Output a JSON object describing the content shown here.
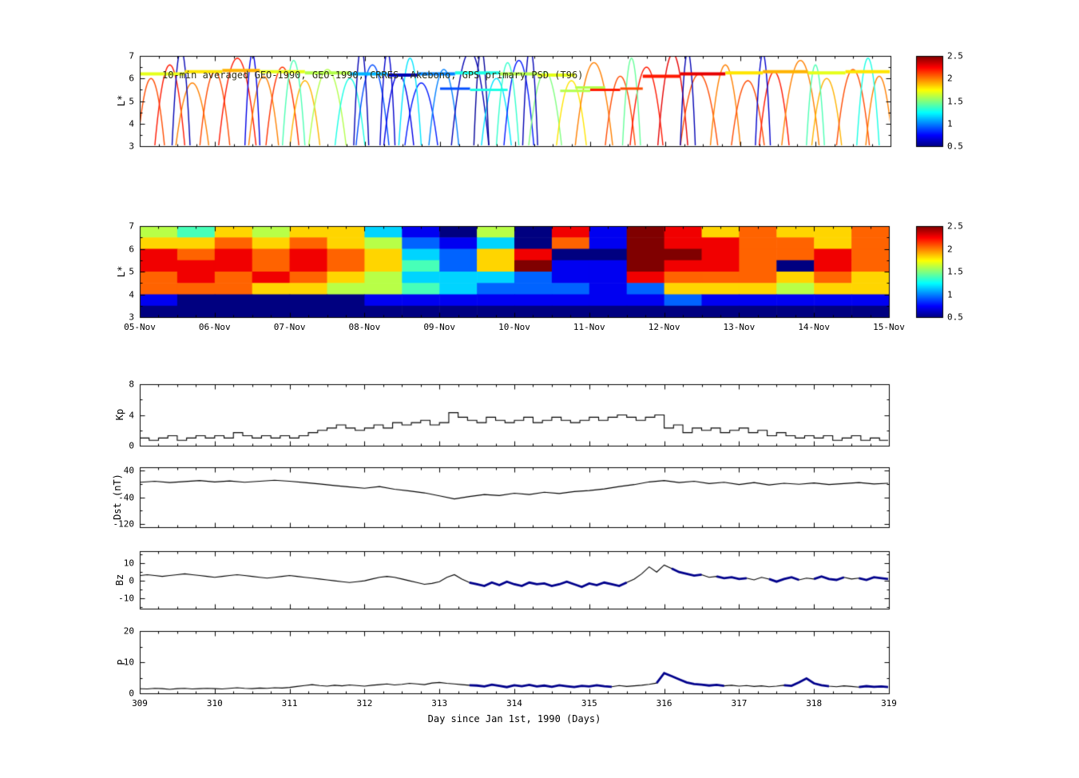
{
  "figure": {
    "background": "#ffffff",
    "line_color": "#000000",
    "bold_color": "#00008b"
  },
  "colorbar": {
    "vmin": 0.5,
    "vmax": 2.5,
    "tick_labels": [
      "2.5",
      "2",
      "1.5",
      "1",
      "0.5"
    ],
    "tick_values": [
      2.5,
      2,
      1.5,
      1,
      0.5
    ]
  },
  "chart_data": [
    {
      "id": "psd-orbits",
      "type": "scatter-arcs",
      "title": "10-min averaged GEO-1990, GEO-1990, CRRES, Akebono, GPS  primary PSD (T96)",
      "ylabel": "L*",
      "xlim": [
        309,
        319
      ],
      "ylim": [
        3,
        7
      ],
      "ytick_values": [
        7,
        6,
        5,
        4,
        3
      ],
      "ytick_labels": [
        "7",
        "6",
        "5",
        "4",
        "3"
      ],
      "ytick_minor": [
        3.5,
        4.5,
        5.5,
        6.5
      ],
      "vmin": 0.5,
      "vmax": 2.5,
      "geo_band": [
        [
          309.0,
          309.6,
          6.2,
          1.7
        ],
        [
          309.6,
          310.1,
          6.3,
          1.8
        ],
        [
          310.1,
          310.6,
          6.35,
          1.9
        ],
        [
          310.6,
          311.2,
          6.3,
          1.7
        ],
        [
          311.2,
          311.8,
          6.25,
          1.6
        ],
        [
          311.8,
          312.3,
          6.2,
          1.1
        ],
        [
          312.3,
          312.7,
          6.15,
          0.6
        ],
        [
          312.7,
          313.2,
          6.2,
          1.0
        ],
        [
          313.2,
          313.8,
          6.25,
          1.3
        ],
        [
          313.8,
          314.3,
          6.2,
          1.6
        ],
        [
          314.3,
          314.8,
          6.15,
          1.7
        ],
        [
          315.7,
          316.2,
          6.1,
          2.2
        ],
        [
          316.2,
          316.8,
          6.2,
          2.3
        ],
        [
          316.8,
          317.3,
          6.25,
          1.8
        ],
        [
          317.3,
          317.9,
          6.3,
          1.9
        ],
        [
          317.9,
          318.4,
          6.25,
          1.7
        ],
        [
          318.4,
          319.0,
          6.3,
          1.8
        ]
      ],
      "mid_band": [
        [
          313.0,
          313.4,
          5.55,
          0.9
        ],
        [
          313.4,
          313.9,
          5.5,
          1.3
        ],
        [
          314.6,
          315.0,
          5.45,
          1.6
        ],
        [
          315.0,
          315.4,
          5.5,
          2.2
        ],
        [
          315.4,
          315.7,
          5.55,
          2.1
        ],
        [
          314.8,
          315.2,
          5.6,
          1.6
        ]
      ],
      "arcs": [
        [
          309.15,
          0.18,
          6.0,
          2.1
        ],
        [
          309.4,
          0.2,
          6.6,
          2.2
        ],
        [
          309.7,
          0.22,
          5.8,
          2.0
        ],
        [
          310.0,
          0.2,
          6.3,
          2.1
        ],
        [
          310.3,
          0.25,
          6.9,
          2.2
        ],
        [
          310.65,
          0.2,
          6.1,
          2.0
        ],
        [
          310.9,
          0.22,
          6.5,
          2.15
        ],
        [
          311.2,
          0.2,
          5.9,
          1.9
        ],
        [
          311.5,
          0.25,
          6.4,
          1.6
        ],
        [
          311.8,
          0.2,
          6.0,
          1.3
        ],
        [
          312.1,
          0.22,
          6.6,
          0.9
        ],
        [
          312.45,
          0.2,
          6.2,
          0.7
        ],
        [
          312.75,
          0.22,
          5.8,
          0.8
        ],
        [
          313.05,
          0.2,
          6.4,
          1.0
        ],
        [
          313.4,
          0.25,
          7.2,
          0.6
        ],
        [
          313.75,
          0.2,
          6.0,
          1.2
        ],
        [
          314.05,
          0.2,
          6.8,
          0.8
        ],
        [
          314.4,
          0.22,
          6.3,
          1.5
        ],
        [
          314.75,
          0.2,
          5.9,
          1.8
        ],
        [
          315.05,
          0.25,
          6.7,
          2.0
        ],
        [
          315.4,
          0.2,
          6.1,
          2.1
        ],
        [
          315.75,
          0.22,
          6.5,
          2.2
        ],
        [
          316.1,
          0.2,
          7.1,
          2.3
        ],
        [
          316.45,
          0.25,
          6.2,
          2.1
        ],
        [
          316.8,
          0.2,
          6.6,
          2.0
        ],
        [
          317.1,
          0.22,
          5.9,
          2.1
        ],
        [
          317.45,
          0.2,
          6.3,
          2.2
        ],
        [
          317.8,
          0.25,
          6.8,
          2.0
        ],
        [
          318.15,
          0.2,
          6.0,
          1.9
        ],
        [
          318.5,
          0.22,
          6.4,
          2.1
        ],
        [
          318.85,
          0.18,
          6.1,
          2.0
        ],
        [
          309.55,
          0.12,
          7.3,
          0.6
        ],
        [
          310.5,
          0.1,
          7.1,
          0.7
        ],
        [
          311.95,
          0.1,
          7.4,
          0.6
        ],
        [
          312.3,
          0.1,
          7.2,
          0.65
        ],
        [
          313.55,
          0.1,
          7.3,
          0.55
        ],
        [
          314.2,
          0.1,
          7.4,
          0.6
        ],
        [
          316.3,
          0.1,
          7.2,
          0.6
        ],
        [
          317.3,
          0.1,
          7.1,
          0.65
        ],
        [
          311.05,
          0.15,
          6.8,
          1.4
        ],
        [
          312.6,
          0.15,
          6.9,
          1.2
        ],
        [
          313.9,
          0.15,
          6.7,
          1.35
        ],
        [
          315.55,
          0.12,
          6.9,
          1.45
        ],
        [
          318.0,
          0.12,
          6.6,
          1.4
        ],
        [
          318.7,
          0.15,
          6.9,
          1.3
        ]
      ]
    },
    {
      "id": "psd-map",
      "type": "heatmap",
      "ylabel": "L*",
      "xlim": [
        309,
        319
      ],
      "ylim": [
        3,
        7
      ],
      "ytick_values": [
        7,
        6,
        5,
        4,
        3
      ],
      "ytick_labels": [
        "7",
        "6",
        "5",
        "4",
        "3"
      ],
      "ytick_minor": [
        3.5,
        4.5,
        5.5,
        6.5
      ],
      "xtick_values": [
        309,
        310,
        311,
        312,
        313,
        314,
        315,
        316,
        317,
        318,
        319
      ],
      "xtick_labels": [
        "05-Nov",
        "06-Nov",
        "07-Nov",
        "08-Nov",
        "09-Nov",
        "10-Nov",
        "11-Nov",
        "12-Nov",
        "13-Nov",
        "14-Nov",
        "15-Nov"
      ],
      "vmin": 0.5,
      "vmax": 2.5,
      "grid_digits": [
        [
          5,
          4,
          6,
          5,
          6,
          6,
          3,
          1,
          0,
          5,
          0,
          8,
          1,
          9,
          8,
          6,
          7,
          6,
          6,
          7
        ],
        [
          6,
          6,
          7,
          6,
          7,
          6,
          5,
          2,
          1,
          3,
          0,
          7,
          1,
          9,
          8,
          8,
          7,
          7,
          6,
          7
        ],
        [
          8,
          7,
          8,
          7,
          8,
          7,
          6,
          3,
          2,
          6,
          8,
          0,
          0,
          9,
          9,
          8,
          7,
          7,
          8,
          7
        ],
        [
          8,
          8,
          8,
          7,
          8,
          7,
          6,
          4,
          2,
          6,
          9,
          1,
          1,
          9,
          8,
          8,
          7,
          0,
          8,
          7
        ],
        [
          7,
          8,
          7,
          8,
          7,
          6,
          5,
          3,
          3,
          3,
          2,
          1,
          1,
          8,
          7,
          7,
          7,
          6,
          7,
          6
        ],
        [
          7,
          7,
          7,
          6,
          6,
          5,
          5,
          4,
          3,
          2,
          2,
          2,
          1,
          2,
          6,
          6,
          6,
          5,
          6,
          6
        ],
        [
          1,
          0,
          0,
          0,
          0,
          0,
          1,
          1,
          1,
          1,
          1,
          1,
          1,
          1,
          2,
          1,
          1,
          1,
          1,
          1
        ],
        [
          0,
          0,
          0,
          0,
          0,
          0,
          0,
          0,
          0,
          0,
          0,
          0,
          0,
          0,
          0,
          0,
          0,
          0,
          0,
          0
        ]
      ]
    },
    {
      "id": "kp",
      "type": "step",
      "ylabel": "Kp",
      "xlim": [
        309,
        319
      ],
      "ylim": [
        0,
        8
      ],
      "ytick_values": [
        8,
        4,
        0
      ],
      "ytick_labels": [
        "8",
        "4",
        "0"
      ],
      "ytick_minor": [
        2,
        6
      ],
      "x0": 309,
      "dx": 0.125,
      "values": [
        1,
        0.7,
        1,
        1.3,
        0.7,
        1,
        1.3,
        1,
        1.3,
        1,
        1.7,
        1.3,
        1,
        1.3,
        1,
        1.3,
        1,
        1.3,
        1.7,
        2,
        2.3,
        2.7,
        2.3,
        2,
        2.3,
        2.7,
        2.3,
        3,
        2.7,
        3,
        3.3,
        2.7,
        3,
        4.3,
        3.7,
        3.3,
        3,
        3.7,
        3.3,
        3,
        3.3,
        3.7,
        3,
        3.3,
        3.7,
        3.3,
        3,
        3.3,
        3.7,
        3.3,
        3.7,
        4,
        3.7,
        3.3,
        3.7,
        4,
        2.3,
        2.7,
        1.7,
        2.3,
        2,
        2.3,
        1.7,
        2,
        2.3,
        1.7,
        2,
        1.3,
        1.7,
        1.3,
        1,
        1.3,
        1,
        1.3,
        0.7,
        1,
        1.3,
        0.7,
        1,
        0.7
      ]
    },
    {
      "id": "dst",
      "type": "line",
      "ylabel": "Dst (nT)",
      "xlim": [
        309,
        319
      ],
      "ylim": [
        -130,
        50
      ],
      "ytick_values": [
        40,
        -40,
        -120
      ],
      "ytick_labels": [
        "40",
        "-40",
        "-120"
      ],
      "ytick_minor": [
        0,
        -80
      ],
      "x0": 309,
      "dx": 0.2,
      "values": [
        5,
        8,
        4,
        7,
        10,
        6,
        9,
        5,
        8,
        11,
        8,
        4,
        0,
        -5,
        -9,
        -13,
        -8,
        -16,
        -21,
        -27,
        -36,
        -45,
        -38,
        -32,
        -35,
        -28,
        -32,
        -25,
        -29,
        -23,
        -20,
        -15,
        -8,
        -2,
        6,
        10,
        4,
        8,
        1,
        5,
        -2,
        4,
        -3,
        2,
        -1,
        3,
        -2,
        1,
        4,
        0,
        2
      ]
    },
    {
      "id": "bz",
      "type": "line",
      "ylabel": "Bz",
      "xlim": [
        309,
        319
      ],
      "ylim": [
        -16,
        17
      ],
      "ytick_values": [
        10,
        0,
        -10
      ],
      "ytick_labels": [
        "10",
        "0",
        "-10"
      ],
      "ytick_minor": [
        15,
        5,
        -5,
        -15
      ],
      "x0": 309,
      "dx": 0.1,
      "bold_color": "#00008b",
      "bold_ranges": [
        [
          313.4,
          315.55
        ],
        [
          316.05,
          316.55
        ],
        [
          316.7,
          317.1
        ],
        [
          317.35,
          317.8
        ],
        [
          317.95,
          318.45
        ],
        [
          318.6,
          319.0
        ]
      ],
      "values": [
        3,
        3.5,
        3,
        2.5,
        3,
        3.5,
        4,
        3.5,
        3,
        2.5,
        2,
        2.5,
        3,
        3.5,
        3,
        2.5,
        2,
        1.5,
        2,
        2.5,
        3,
        2.5,
        2,
        1.5,
        1,
        0.5,
        0,
        -0.5,
        -1,
        -0.5,
        0,
        1,
        2,
        2.5,
        2,
        1,
        0,
        -1,
        -2,
        -1.5,
        -0.5,
        2,
        3.5,
        1,
        -1,
        -2,
        -3,
        -1,
        -2.5,
        -0.5,
        -2,
        -3,
        -1,
        -2,
        -1.5,
        -3,
        -2,
        -0.5,
        -2,
        -3.5,
        -1.5,
        -2.5,
        -1,
        -2,
        -3,
        -1,
        1,
        4,
        8,
        5,
        9,
        7,
        5,
        4,
        3,
        3.5,
        2,
        2.5,
        1.5,
        2,
        1,
        1.5,
        0.5,
        2,
        1,
        -0.5,
        1,
        2,
        0.5,
        1.5,
        1,
        2.5,
        1,
        0.5,
        2,
        1,
        1.5,
        0.5,
        2,
        1.5,
        1
      ]
    },
    {
      "id": "p",
      "type": "line",
      "ylabel": "P",
      "xlabel": "Day since Jan 1st, 1990 (Days)",
      "xlim": [
        309,
        319
      ],
      "ylim": [
        0,
        20
      ],
      "ytick_values": [
        20,
        10,
        0
      ],
      "ytick_labels": [
        "20",
        "10",
        "0"
      ],
      "ytick_minor": [
        5,
        15
      ],
      "xtick_values": [
        309,
        310,
        311,
        312,
        313,
        314,
        315,
        316,
        317,
        318,
        319
      ],
      "xtick_labels": [
        "309",
        "310",
        "311",
        "312",
        "313",
        "314",
        "315",
        "316",
        "317",
        "318",
        "319"
      ],
      "x0": 309,
      "dx": 0.1,
      "bold_color": "#00008b",
      "bold_ranges": [
        [
          313.4,
          315.3
        ],
        [
          315.9,
          316.85
        ],
        [
          317.55,
          318.25
        ],
        [
          318.55,
          319.0
        ]
      ],
      "values": [
        1.5,
        1.4,
        1.6,
        1.5,
        1.3,
        1.5,
        1.6,
        1.4,
        1.5,
        1.6,
        1.5,
        1.4,
        1.6,
        1.8,
        1.6,
        1.5,
        1.7,
        1.6,
        1.8,
        1.7,
        1.9,
        2.2,
        2.5,
        2.8,
        2.5,
        2.3,
        2.6,
        2.4,
        2.7,
        2.5,
        2.3,
        2.6,
        2.8,
        3.0,
        2.7,
        2.9,
        3.2,
        3.0,
        2.8,
        3.3,
        3.5,
        3.2,
        3.0,
        2.8,
        2.6,
        2.5,
        2.2,
        2.8,
        2.4,
        2.0,
        2.6,
        2.3,
        2.7,
        2.2,
        2.5,
        2.1,
        2.6,
        2.3,
        2.0,
        2.4,
        2.2,
        2.6,
        2.3,
        2.1,
        2.5,
        2.2,
        2.4,
        2.6,
        2.9,
        3.3,
        6.5,
        5.5,
        4.5,
        3.5,
        3.0,
        2.8,
        2.5,
        2.7,
        2.4,
        2.6,
        2.3,
        2.5,
        2.2,
        2.4,
        2.1,
        2.3,
        2.6,
        2.4,
        3.5,
        4.8,
        3.2,
        2.6,
        2.3,
        2.1,
        2.4,
        2.2,
        2.0,
        2.3,
        2.1,
        2.2,
        2.0
      ]
    }
  ]
}
